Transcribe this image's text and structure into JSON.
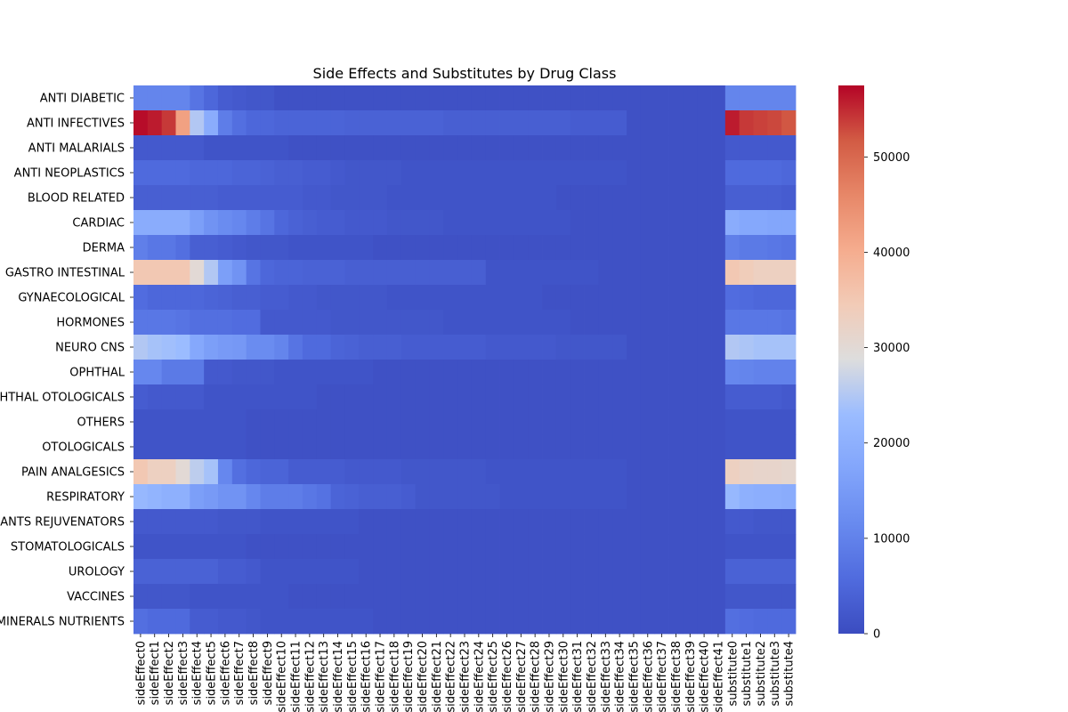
{
  "chart_data": {
    "type": "heatmap",
    "title": "Side Effects and Substitutes by Drug Class",
    "xlabel": "",
    "ylabel": "",
    "colormap": "coolwarm",
    "color_range": [
      0,
      57500
    ],
    "colorbar_ticks": [
      "0",
      "10000",
      "20000",
      "30000",
      "40000",
      "50000"
    ],
    "colorbar_tick_values": [
      0,
      10000,
      20000,
      30000,
      40000,
      50000
    ],
    "rows": [
      "ANTI DIABETIC",
      "ANTI INFECTIVES",
      "ANTI MALARIALS",
      "ANTI NEOPLASTICS",
      "BLOOD RELATED",
      "CARDIAC",
      "DERMA",
      "GASTRO INTESTINAL",
      "GYNAECOLOGICAL",
      "HORMONES",
      "NEURO CNS",
      "OPHTHAL",
      "OPHTHAL OTOLOGICALS",
      "OTHERS",
      "OTOLOGICALS",
      "PAIN ANALGESICS",
      "RESPIRATORY",
      "SEX STIMULANTS REJUVENATORS",
      "STOMATOLOGICALS",
      "UROLOGY",
      "VACCINES",
      "VITAMINS MINERALS NUTRIENTS"
    ],
    "columns": [
      "sideEffect0",
      "sideEffect1",
      "sideEffect2",
      "sideEffect3",
      "sideEffect4",
      "sideEffect5",
      "sideEffect6",
      "sideEffect7",
      "sideEffect8",
      "sideEffect9",
      "sideEffect10",
      "sideEffect11",
      "sideEffect12",
      "sideEffect13",
      "sideEffect14",
      "sideEffect15",
      "sideEffect16",
      "sideEffect17",
      "sideEffect18",
      "sideEffect19",
      "sideEffect20",
      "sideEffect21",
      "sideEffect22",
      "sideEffect23",
      "sideEffect24",
      "sideEffect25",
      "sideEffect26",
      "sideEffect27",
      "sideEffect28",
      "sideEffect29",
      "sideEffect30",
      "sideEffect31",
      "sideEffect32",
      "sideEffect33",
      "sideEffect34",
      "sideEffect35",
      "sideEffect36",
      "sideEffect37",
      "sideEffect38",
      "sideEffect39",
      "sideEffect40",
      "sideEffect41",
      "substitute0",
      "substitute1",
      "substitute2",
      "substitute3",
      "substitute4"
    ],
    "values": [
      [
        10500,
        10500,
        10500,
        10500,
        7500,
        5000,
        3000,
        2500,
        2000,
        2000,
        1000,
        1000,
        1000,
        1000,
        1000,
        1000,
        1000,
        1000,
        1000,
        1000,
        1000,
        1000,
        1000,
        1000,
        1000,
        1000,
        1000,
        1000,
        1000,
        1000,
        1000,
        1000,
        1000,
        1000,
        1000,
        1000,
        1000,
        1000,
        1000,
        1000,
        1000,
        1000,
        10500,
        10500,
        10500,
        10500,
        10500
      ],
      [
        57000,
        56000,
        54000,
        42000,
        25000,
        19000,
        9000,
        6500,
        5000,
        5000,
        4500,
        4500,
        4500,
        4500,
        4500,
        4000,
        4000,
        4000,
        4000,
        4000,
        4000,
        4000,
        3500,
        3500,
        3500,
        3500,
        3500,
        3500,
        3500,
        3500,
        3500,
        3000,
        3000,
        3000,
        3000,
        1000,
        1000,
        1000,
        1000,
        1000,
        1000,
        1000,
        56000,
        54000,
        53500,
        53000,
        52000
      ],
      [
        2500,
        2500,
        2500,
        2500,
        2500,
        1500,
        1500,
        1500,
        1500,
        1500,
        1500,
        1000,
        1000,
        1000,
        1000,
        1000,
        1000,
        1000,
        1000,
        1000,
        1000,
        1000,
        1000,
        1000,
        1000,
        1000,
        1000,
        1000,
        1000,
        1000,
        1000,
        1000,
        1000,
        1000,
        1000,
        1000,
        1000,
        1000,
        1000,
        1000,
        1000,
        1000,
        2500,
        2500,
        2500,
        2500,
        2500
      ],
      [
        5500,
        5500,
        5500,
        5500,
        5000,
        5000,
        5000,
        4500,
        4500,
        4000,
        3500,
        3500,
        3000,
        3000,
        2500,
        2000,
        2000,
        2000,
        2000,
        1500,
        1500,
        1500,
        1500,
        1500,
        1500,
        1500,
        1500,
        1500,
        1500,
        1500,
        1500,
        1500,
        1500,
        1500,
        1500,
        1000,
        1000,
        1000,
        1000,
        1000,
        1000,
        1000,
        5500,
        5500,
        5500,
        5500,
        5000
      ],
      [
        3500,
        3500,
        3500,
        3500,
        3500,
        3500,
        3000,
        3000,
        3000,
        3000,
        3000,
        3000,
        2500,
        2500,
        2000,
        2000,
        2000,
        2000,
        1500,
        1500,
        1500,
        1500,
        1500,
        1500,
        1500,
        1500,
        1500,
        1500,
        1500,
        1500,
        1000,
        1000,
        1000,
        1000,
        1000,
        1000,
        1000,
        1000,
        1000,
        1000,
        1000,
        1000,
        3500,
        3500,
        3500,
        3500,
        3000
      ],
      [
        19000,
        19000,
        19000,
        19000,
        16000,
        13500,
        12000,
        11000,
        9000,
        7500,
        5000,
        4000,
        3500,
        3000,
        3000,
        2500,
        2500,
        2500,
        2000,
        2000,
        2000,
        2000,
        1500,
        1500,
        1500,
        1500,
        1500,
        1500,
        1500,
        1500,
        1500,
        1000,
        1000,
        1000,
        1000,
        1000,
        1000,
        1000,
        1000,
        1000,
        1000,
        1000,
        19000,
        18000,
        18000,
        17500,
        17500
      ],
      [
        9500,
        8000,
        8000,
        6500,
        3500,
        3500,
        3000,
        2500,
        2000,
        2000,
        2000,
        1500,
        1500,
        1500,
        1500,
        1500,
        1500,
        1000,
        1000,
        1000,
        1000,
        1000,
        1000,
        1000,
        1000,
        1000,
        1000,
        1000,
        1000,
        1000,
        1000,
        1000,
        1000,
        1000,
        1000,
        1000,
        1000,
        1000,
        1000,
        1000,
        1000,
        1000,
        9500,
        8500,
        8500,
        8000,
        7500
      ],
      [
        35000,
        35000,
        35000,
        35000,
        30000,
        25000,
        16000,
        13500,
        7500,
        5000,
        4500,
        4500,
        4000,
        4000,
        4000,
        3500,
        3500,
        3500,
        3500,
        3500,
        3500,
        3500,
        3500,
        3500,
        3500,
        1500,
        1500,
        1500,
        1500,
        1500,
        1500,
        1500,
        1500,
        1000,
        1000,
        1000,
        1000,
        1000,
        1000,
        1000,
        1000,
        1000,
        35000,
        34000,
        33000,
        33000,
        33000
      ],
      [
        6000,
        5000,
        5000,
        5000,
        5000,
        4500,
        4000,
        3500,
        3500,
        3000,
        3000,
        2500,
        2500,
        2000,
        2000,
        2000,
        2000,
        2000,
        1500,
        1500,
        1500,
        1500,
        1500,
        1500,
        1500,
        1500,
        1500,
        1500,
        1500,
        1000,
        1000,
        1000,
        1000,
        1000,
        1000,
        1000,
        1000,
        1000,
        1000,
        1000,
        1000,
        1000,
        6000,
        5500,
        5000,
        5000,
        5000
      ],
      [
        8000,
        8000,
        8000,
        7500,
        6500,
        6500,
        6500,
        6000,
        6000,
        2500,
        2500,
        2500,
        2500,
        2500,
        2000,
        2000,
        2000,
        2000,
        2000,
        2000,
        2000,
        2000,
        1500,
        1500,
        1500,
        1500,
        1500,
        1500,
        1500,
        1500,
        1500,
        1000,
        1000,
        1000,
        1000,
        1000,
        1000,
        1000,
        1000,
        1000,
        1000,
        1000,
        8000,
        8000,
        8000,
        8000,
        7500
      ],
      [
        25000,
        24000,
        23500,
        23000,
        18000,
        16000,
        15000,
        14500,
        12000,
        12000,
        10500,
        7500,
        5500,
        5500,
        4500,
        4000,
        3500,
        3500,
        3500,
        3000,
        3000,
        3000,
        3000,
        3000,
        3000,
        2500,
        2500,
        2500,
        2500,
        2500,
        2000,
        2000,
        2000,
        2000,
        2000,
        1000,
        1000,
        1000,
        1000,
        1000,
        1000,
        1000,
        25000,
        24500,
        24000,
        24000,
        24000
      ],
      [
        11000,
        11000,
        8500,
        8500,
        8500,
        2500,
        2500,
        2000,
        2000,
        2000,
        1500,
        1500,
        1500,
        1500,
        1500,
        1500,
        1500,
        1000,
        1000,
        1000,
        1000,
        1000,
        1000,
        1000,
        1000,
        1000,
        1000,
        1000,
        1000,
        1000,
        1000,
        1000,
        1000,
        1000,
        1000,
        1000,
        1000,
        1000,
        1000,
        1000,
        1000,
        1000,
        11000,
        10500,
        10000,
        10000,
        10000
      ],
      [
        3000,
        2500,
        2500,
        2500,
        2500,
        1500,
        1500,
        1500,
        1500,
        1500,
        1500,
        1500,
        1500,
        1000,
        1000,
        1000,
        1000,
        1000,
        1000,
        1000,
        1000,
        1000,
        1000,
        1000,
        1000,
        1000,
        1000,
        1000,
        1000,
        1000,
        1000,
        1000,
        1000,
        1000,
        1000,
        1000,
        1000,
        1000,
        1000,
        1000,
        1000,
        1000,
        3000,
        3000,
        3000,
        3000,
        2500
      ],
      [
        1500,
        1500,
        1500,
        1500,
        1500,
        1500,
        1500,
        1500,
        1000,
        1000,
        1000,
        1000,
        1000,
        1000,
        1000,
        1000,
        1000,
        1000,
        1000,
        1000,
        1000,
        1000,
        1000,
        1000,
        1000,
        1000,
        1000,
        1000,
        1000,
        1000,
        1000,
        1000,
        1000,
        1000,
        1000,
        1000,
        1000,
        1000,
        1000,
        1000,
        1000,
        1000,
        1500,
        1500,
        1500,
        1500,
        1500
      ],
      [
        1500,
        1500,
        1500,
        1500,
        1500,
        1500,
        1500,
        1500,
        1000,
        1000,
        1000,
        1000,
        1000,
        1000,
        1000,
        1000,
        1000,
        1000,
        1000,
        1000,
        1000,
        1000,
        1000,
        1000,
        1000,
        1000,
        1000,
        1000,
        1000,
        1000,
        1000,
        1000,
        1000,
        1000,
        1000,
        1000,
        1000,
        1000,
        1000,
        1000,
        1000,
        1000,
        1500,
        1500,
        1500,
        1500,
        1500
      ],
      [
        35000,
        33000,
        33000,
        30000,
        26000,
        24000,
        11000,
        6500,
        5000,
        4500,
        4500,
        3000,
        3000,
        3000,
        3000,
        2500,
        2500,
        2500,
        2500,
        2000,
        2000,
        2000,
        2000,
        2000,
        2000,
        1500,
        1500,
        1500,
        1500,
        1500,
        1500,
        1500,
        1500,
        1500,
        1500,
        1000,
        1000,
        1000,
        1000,
        1000,
        1000,
        1000,
        33000,
        32000,
        31500,
        31500,
        31000
      ],
      [
        22000,
        21000,
        20000,
        20000,
        16000,
        15000,
        13500,
        13500,
        11000,
        9000,
        9000,
        9000,
        8000,
        7000,
        4500,
        4000,
        3500,
        3500,
        3500,
        3000,
        2000,
        2000,
        2000,
        2000,
        2000,
        2000,
        1500,
        1500,
        1500,
        1500,
        1500,
        1500,
        1500,
        1500,
        1500,
        1000,
        1000,
        1000,
        1000,
        1000,
        1000,
        1000,
        22000,
        20000,
        19500,
        19500,
        19000
      ],
      [
        2500,
        2500,
        2500,
        2500,
        2500,
        2500,
        2000,
        2000,
        2000,
        1500,
        1500,
        1500,
        1500,
        1500,
        1500,
        1500,
        1000,
        1000,
        1000,
        1000,
        1000,
        1000,
        1000,
        1000,
        1000,
        1000,
        1000,
        1000,
        1000,
        1000,
        1000,
        1000,
        1000,
        1000,
        1000,
        1000,
        1000,
        1000,
        1000,
        1000,
        1000,
        1000,
        2500,
        2500,
        2000,
        2000,
        2000
      ],
      [
        1500,
        1500,
        1500,
        1500,
        1500,
        1500,
        1500,
        1500,
        1000,
        1000,
        1000,
        1000,
        1000,
        1000,
        1000,
        1000,
        1000,
        1000,
        1000,
        1000,
        1000,
        1000,
        1000,
        1000,
        1000,
        1000,
        1000,
        1000,
        1000,
        1000,
        1000,
        1000,
        1000,
        1000,
        1000,
        1000,
        1000,
        1000,
        1000,
        1000,
        1000,
        1000,
        1500,
        1500,
        1500,
        1500,
        1500
      ],
      [
        4000,
        4000,
        4000,
        4000,
        4000,
        4000,
        3000,
        3000,
        2500,
        1500,
        1500,
        1500,
        1500,
        1500,
        1500,
        1500,
        1000,
        1000,
        1000,
        1000,
        1000,
        1000,
        1000,
        1000,
        1000,
        1000,
        1000,
        1000,
        1000,
        1000,
        1000,
        1000,
        1000,
        1000,
        1000,
        1000,
        1000,
        1000,
        1000,
        1000,
        1000,
        1000,
        4000,
        4000,
        4000,
        4000,
        4000
      ],
      [
        2000,
        2000,
        2000,
        2000,
        1500,
        1500,
        1500,
        1500,
        1500,
        1500,
        1500,
        1000,
        1000,
        1000,
        1000,
        1000,
        1000,
        1000,
        1000,
        1000,
        1000,
        1000,
        1000,
        1000,
        1000,
        1000,
        1000,
        1000,
        1000,
        1000,
        1000,
        1000,
        1000,
        1000,
        1000,
        1000,
        1000,
        1000,
        1000,
        1000,
        1000,
        1000,
        2000,
        2000,
        2000,
        2000,
        2000
      ],
      [
        6500,
        5500,
        5500,
        5500,
        3000,
        3000,
        2500,
        2500,
        2000,
        1500,
        1500,
        1500,
        1500,
        1500,
        1500,
        1500,
        1500,
        1000,
        1000,
        1000,
        1000,
        1000,
        1000,
        1000,
        1000,
        1000,
        1000,
        1000,
        1000,
        1000,
        1000,
        1000,
        1000,
        1000,
        1000,
        1000,
        1000,
        1000,
        1000,
        1000,
        1000,
        1000,
        6500,
        6000,
        5500,
        5500,
        5500
      ]
    ]
  }
}
